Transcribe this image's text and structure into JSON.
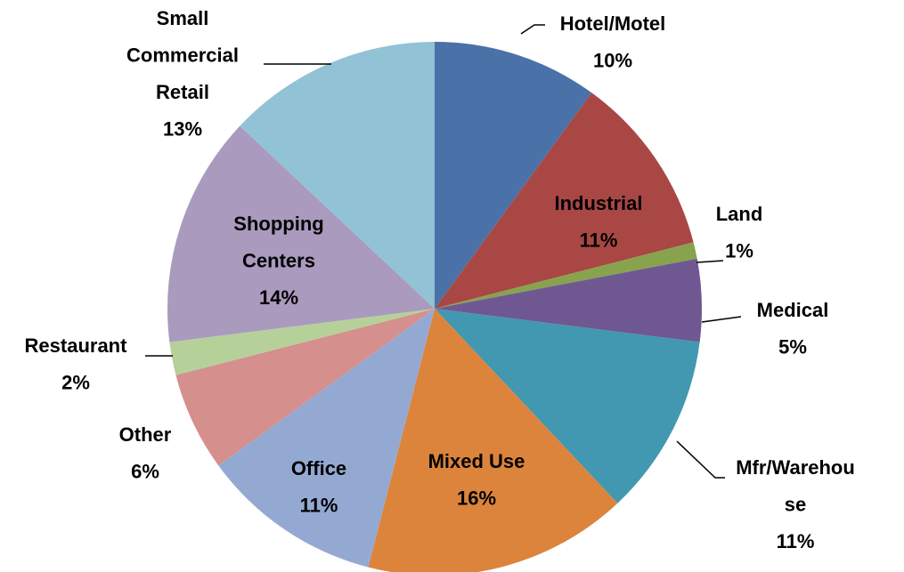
{
  "chart_data": {
    "type": "pie",
    "categories": [
      "Hotel/Motel",
      "Industrial",
      "Land",
      "Medical",
      "Mfr/Warehouse",
      "Mixed Use",
      "Office",
      "Other",
      "Restaurant",
      "Shopping Centers",
      "Small Commercial Retail"
    ],
    "values": [
      10,
      11,
      1,
      5,
      11,
      16,
      11,
      6,
      2,
      14,
      13
    ],
    "value_labels": [
      "10%",
      "11%",
      "1%",
      "5%",
      "11%",
      "16%",
      "11%",
      "6%",
      "2%",
      "14%",
      "13%"
    ],
    "colors": [
      "#4a72a8",
      "#a94744",
      "#87a34e",
      "#6f5892",
      "#4198b0",
      "#dc843c",
      "#94a9d2",
      "#d58f8d",
      "#b6d09a",
      "#a99abe",
      "#92c2d5"
    ]
  }
}
